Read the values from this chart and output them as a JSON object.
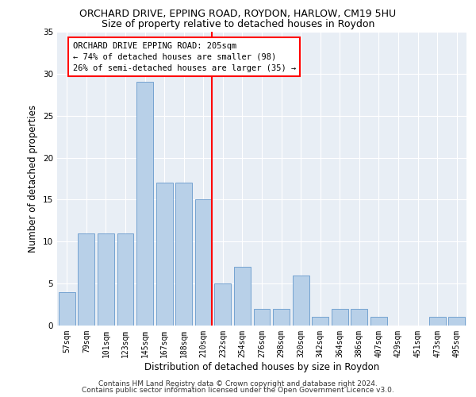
{
  "title": "ORCHARD DRIVE, EPPING ROAD, ROYDON, HARLOW, CM19 5HU",
  "subtitle": "Size of property relative to detached houses in Roydon",
  "xlabel": "Distribution of detached houses by size in Roydon",
  "ylabel": "Number of detached properties",
  "footer1": "Contains HM Land Registry data © Crown copyright and database right 2024.",
  "footer2": "Contains public sector information licensed under the Open Government Licence v3.0.",
  "categories": [
    "57sqm",
    "79sqm",
    "101sqm",
    "123sqm",
    "145sqm",
    "167sqm",
    "188sqm",
    "210sqm",
    "232sqm",
    "254sqm",
    "276sqm",
    "298sqm",
    "320sqm",
    "342sqm",
    "364sqm",
    "386sqm",
    "407sqm",
    "429sqm",
    "451sqm",
    "473sqm",
    "495sqm"
  ],
  "values": [
    4,
    11,
    11,
    11,
    29,
    17,
    17,
    15,
    5,
    7,
    2,
    2,
    6,
    1,
    2,
    2,
    1,
    0,
    0,
    1,
    1
  ],
  "bar_color": "#b8d0e8",
  "bar_edge_color": "#6699cc",
  "vline_color": "red",
  "vline_pos": 7.45,
  "annotation_text": "ORCHARD DRIVE EPPING ROAD: 205sqm\n← 74% of detached houses are smaller (98)\n26% of semi-detached houses are larger (35) →",
  "ylim": [
    0,
    35
  ],
  "yticks": [
    0,
    5,
    10,
    15,
    20,
    25,
    30,
    35
  ],
  "bg_color": "#e8eef5",
  "grid_color": "white",
  "title_fontsize": 9,
  "subtitle_fontsize": 9,
  "ylabel_fontsize": 8.5,
  "xlabel_fontsize": 8.5,
  "tick_fontsize": 7,
  "ann_fontsize": 7.5,
  "footer_fontsize": 6.5
}
